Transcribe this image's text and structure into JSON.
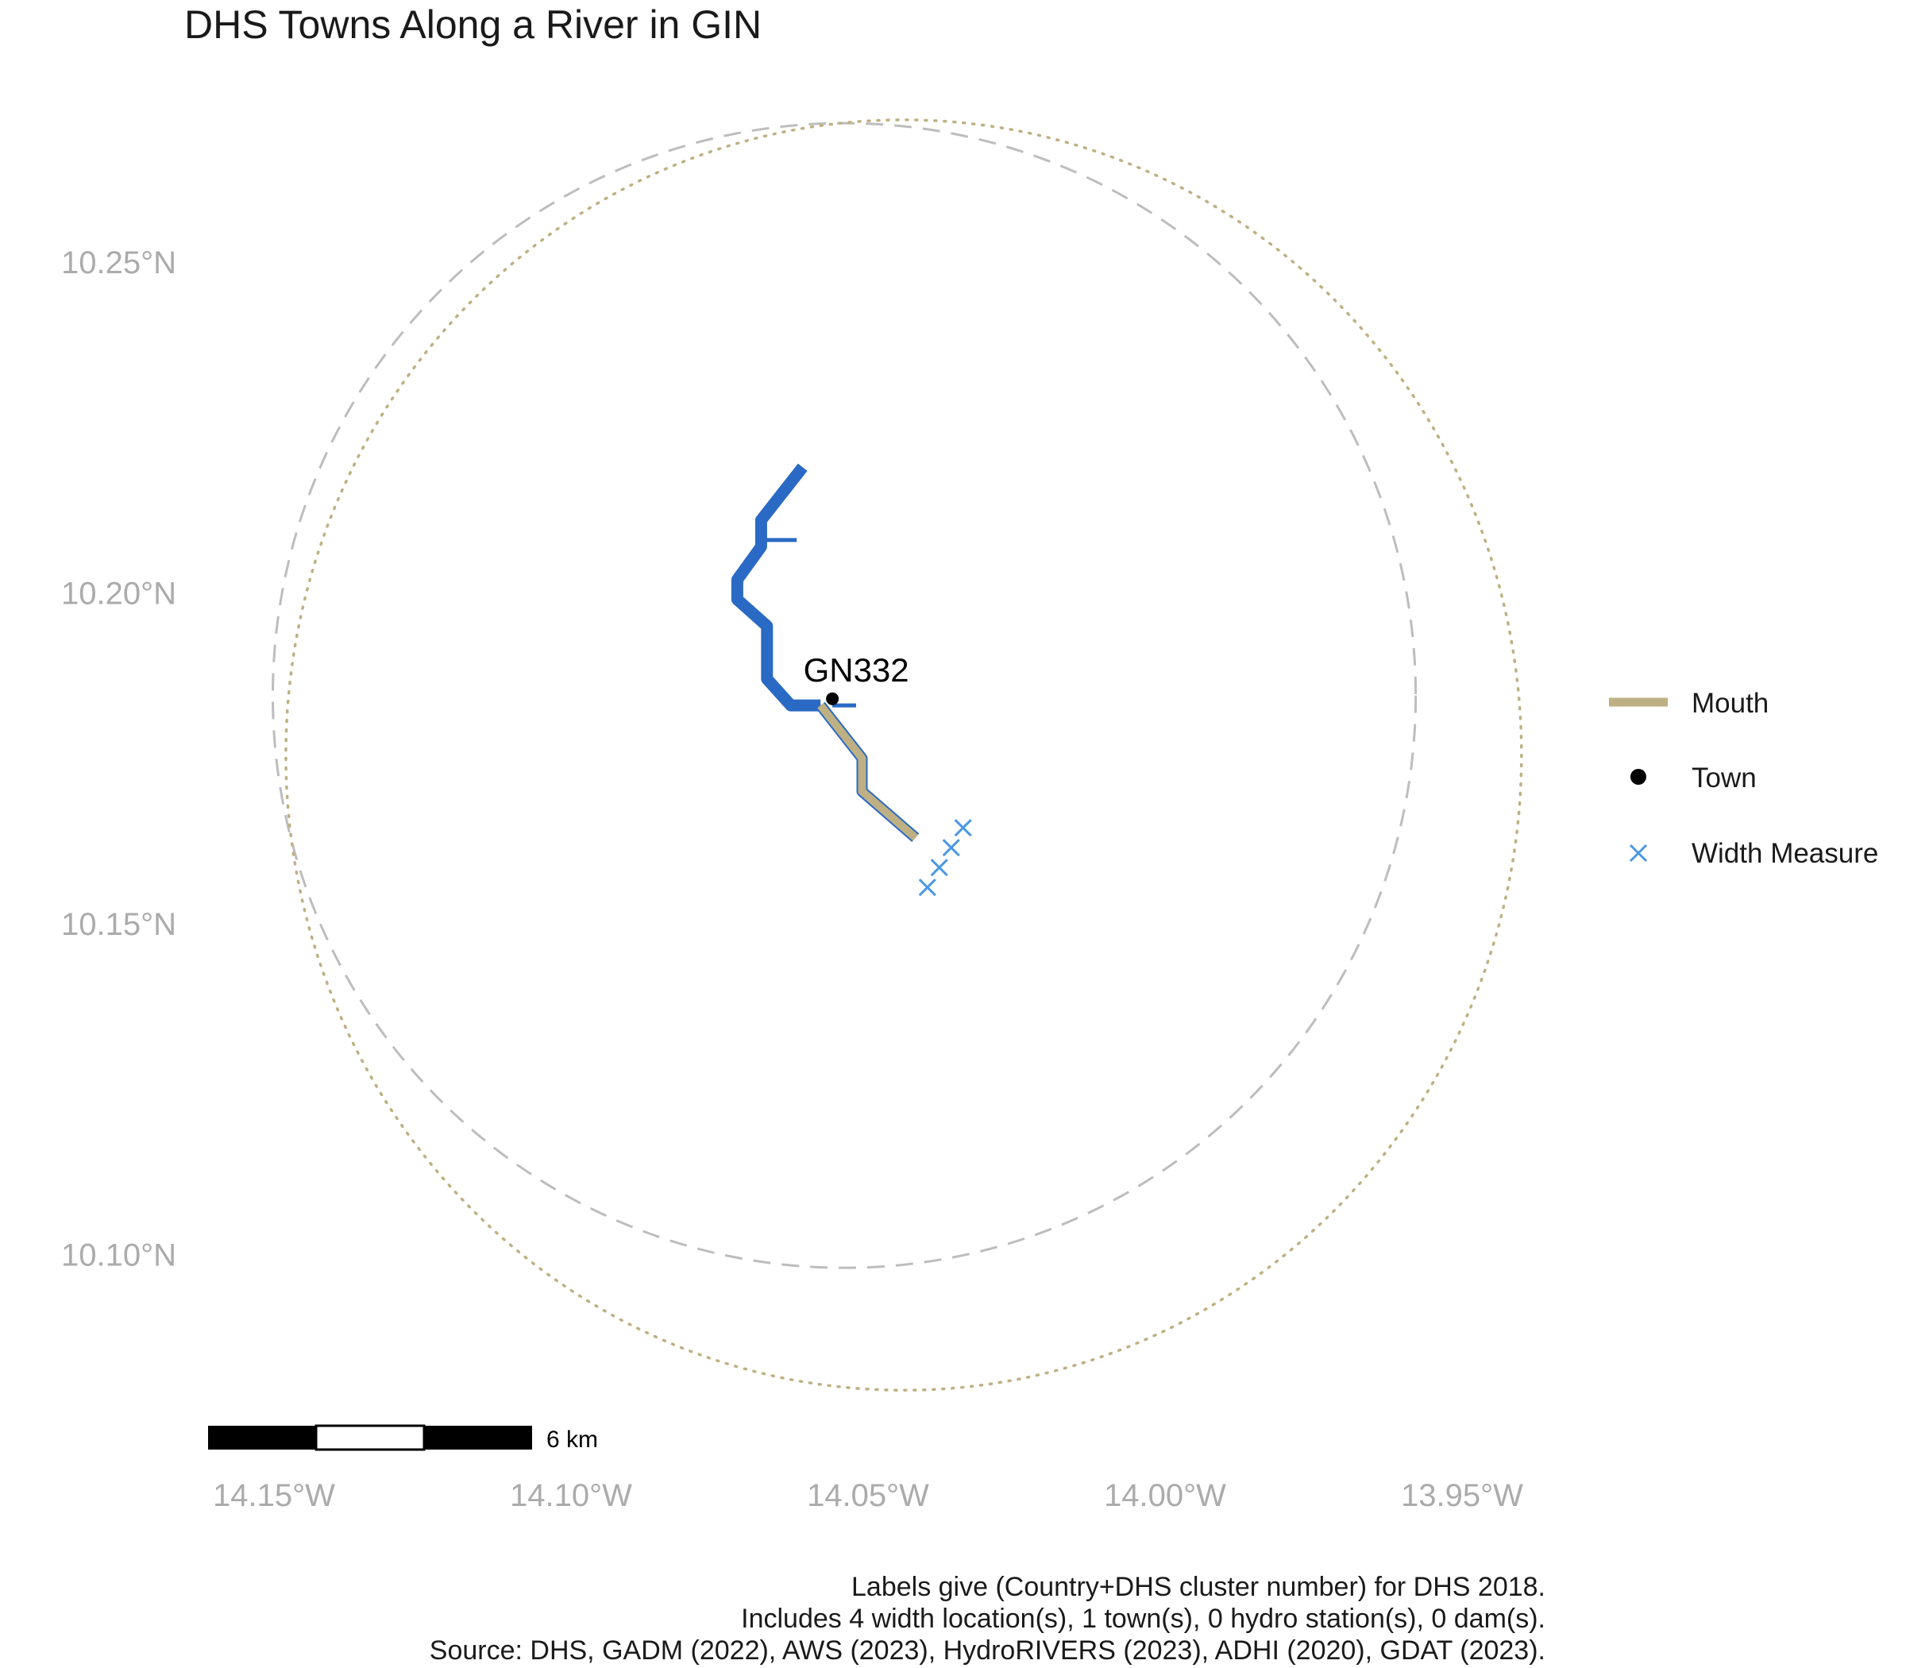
{
  "title": "DHS Towns Along a River in GIN",
  "axes": {
    "x_ticks": [
      {
        "value": -14.15,
        "label": "14.15°W"
      },
      {
        "value": -14.1,
        "label": "14.10°W"
      },
      {
        "value": -14.05,
        "label": "14.05°W"
      },
      {
        "value": -14.0,
        "label": "14.00°W"
      },
      {
        "value": -13.95,
        "label": "13.95°W"
      }
    ],
    "y_ticks": [
      {
        "value": 10.25,
        "label": "10.25°N"
      },
      {
        "value": 10.2,
        "label": "10.20°N"
      },
      {
        "value": 10.15,
        "label": "10.15°N"
      },
      {
        "value": 10.1,
        "label": "10.10°N"
      }
    ]
  },
  "colors": {
    "river": "#2a6ac4",
    "mouth": "#bfb083",
    "town": "#000000",
    "width_measure": "#4a98e2",
    "dashed_circle": "#bdbdbd",
    "dotted_circle": "#bfb083",
    "tick_text": "#ababab"
  },
  "chart_data": {
    "type": "map",
    "x_range": [
      -14.16,
      -13.94
    ],
    "y_range": [
      10.07,
      10.28
    ],
    "river_main": [
      [
        -14.061,
        10.219
      ],
      [
        -14.068,
        10.211
      ],
      [
        -14.068,
        10.207
      ],
      [
        -14.072,
        10.202
      ],
      [
        -14.072,
        10.199
      ],
      [
        -14.067,
        10.195
      ],
      [
        -14.067,
        10.187
      ],
      [
        -14.063,
        10.183
      ],
      [
        -14.058,
        10.183
      ]
    ],
    "river_tributary_north": [
      [
        -14.068,
        10.208
      ],
      [
        -14.062,
        10.208
      ]
    ],
    "river_tributary_town": [
      [
        -14.056,
        10.183
      ],
      [
        -14.052,
        10.183
      ]
    ],
    "river_mouth": [
      [
        -14.058,
        10.183
      ],
      [
        -14.051,
        10.175
      ],
      [
        -14.051,
        10.17
      ],
      [
        -14.042,
        10.163
      ]
    ],
    "towns": [
      {
        "label": "GN332",
        "lon": -14.056,
        "lat": 10.184
      }
    ],
    "width_measures": [
      {
        "lon": -14.04,
        "lat": 10.1555
      },
      {
        "lon": -14.038,
        "lat": 10.1585
      },
      {
        "lon": -14.036,
        "lat": 10.1615
      },
      {
        "lon": -14.034,
        "lat": 10.1645
      }
    ],
    "dashed_circle": {
      "lon": -14.054,
      "lat": 10.1845,
      "r_lon": 0.0962,
      "r_lat": 0.0865
    },
    "dotted_circle": {
      "lon": -14.044,
      "lat": 10.1755,
      "r_lon": 0.104,
      "r_lat": 0.096
    },
    "scale_bar": {
      "label": "6 km",
      "segments": 3
    }
  },
  "legend": {
    "items": [
      {
        "key": "mouth",
        "label": "Mouth"
      },
      {
        "key": "town",
        "label": "Town"
      },
      {
        "key": "width",
        "label": "Width Measure"
      }
    ]
  },
  "caption": {
    "line1": "Labels give (Country+DHS cluster number) for DHS 2018.",
    "line2": "Includes 4 width location(s), 1 town(s), 0 hydro station(s), 0 dam(s).",
    "line3": "Source: DHS, GADM (2022), AWS (2023), HydroRIVERS (2023), ADHI (2020), GDAT (2023)."
  }
}
